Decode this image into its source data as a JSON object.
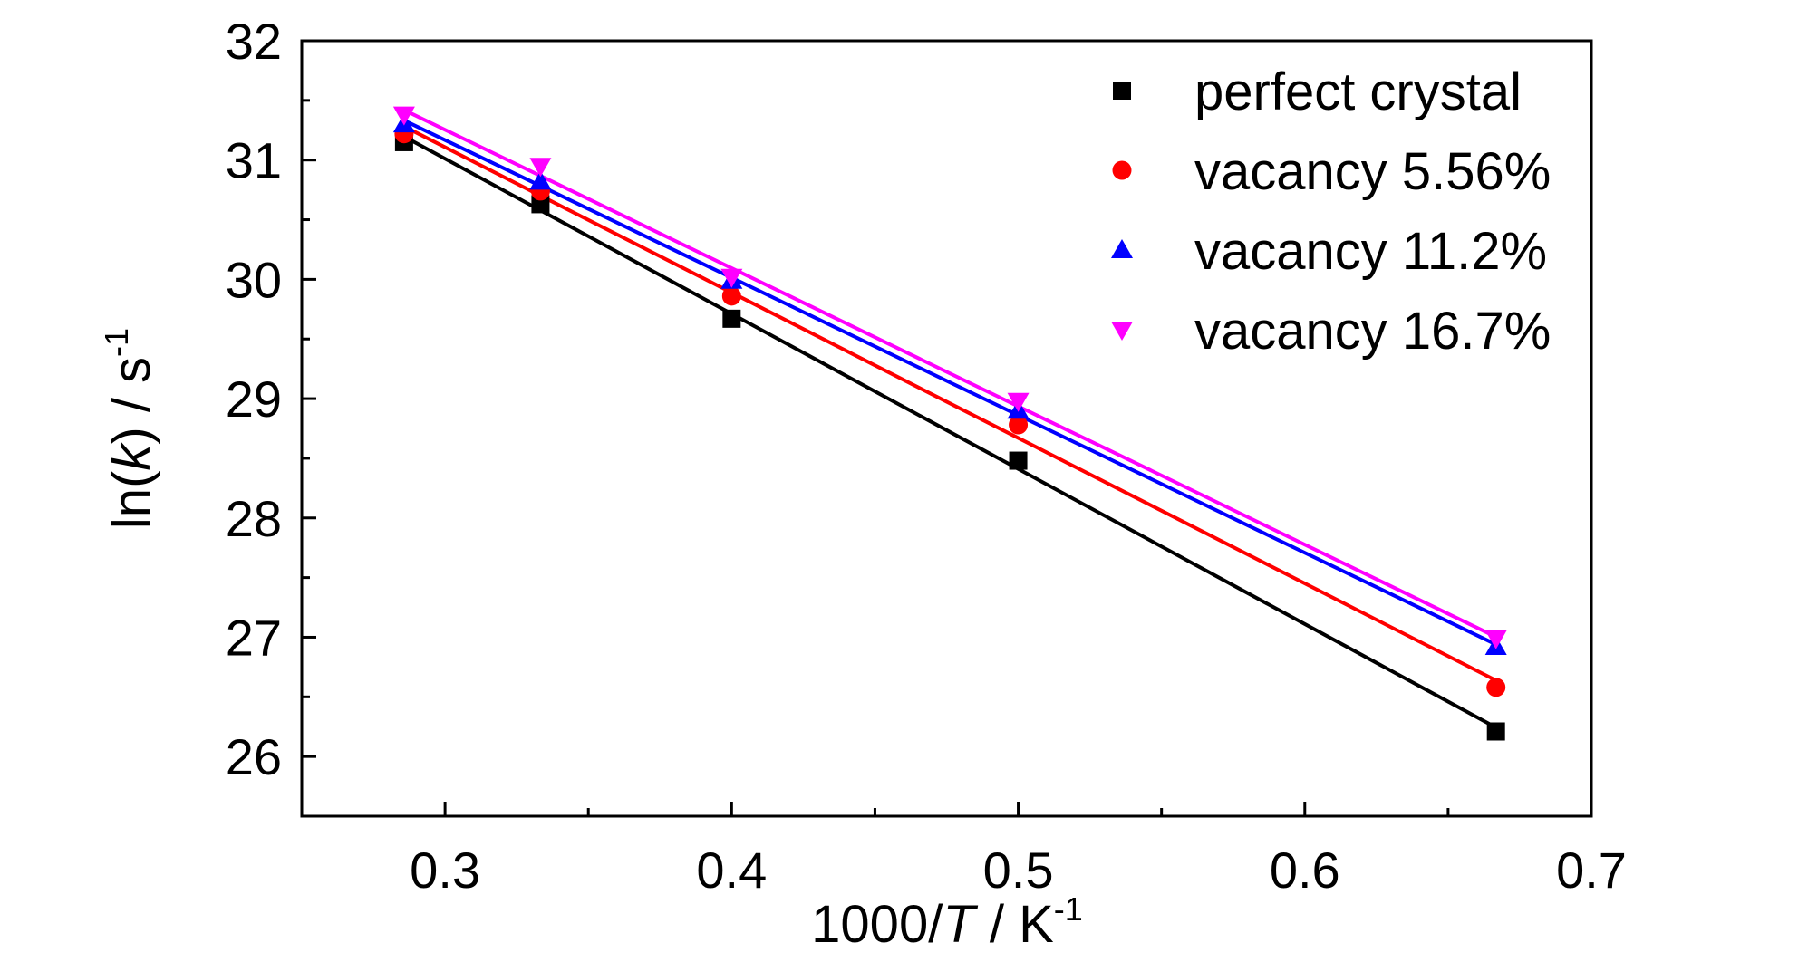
{
  "chart_data": {
    "type": "scatter",
    "xlabel": {
      "prefix": "1000/",
      "italic": "T",
      "suffix": " / K",
      "sup": "-1"
    },
    "ylabel": {
      "prefix": "ln(",
      "italic": "k",
      "suffix": ") / s",
      "sup": "-1"
    },
    "xlim": [
      0.25,
      0.7
    ],
    "ylim": [
      25.5,
      32
    ],
    "xticks": [
      0.3,
      0.4,
      0.5,
      0.6,
      0.7
    ],
    "xtick_labels": [
      "0.3",
      "0.4",
      "0.5",
      "0.6",
      "0.7"
    ],
    "yticks": [
      26,
      27,
      28,
      29,
      30,
      31,
      32
    ],
    "ytick_labels": [
      "26",
      "27",
      "28",
      "29",
      "30",
      "31",
      "32"
    ],
    "legend_position": "top-right",
    "grid": false,
    "fit_lines": true,
    "series": [
      {
        "name": "perfect crystal",
        "color": "#000000",
        "marker": "square",
        "x": [
          0.2857,
          0.3333,
          0.4,
          0.5,
          0.6667
        ],
        "y": [
          31.15,
          30.63,
          29.67,
          28.48,
          26.21
        ]
      },
      {
        "name": "vacancy 5.56%",
        "color": "#ff0000",
        "marker": "circle",
        "x": [
          0.2857,
          0.3333,
          0.4,
          0.5,
          0.6667
        ],
        "y": [
          31.22,
          30.74,
          29.86,
          28.78,
          26.58
        ]
      },
      {
        "name": "vacancy 11.2%",
        "color": "#0000ff",
        "marker": "triangle-up",
        "x": [
          0.2857,
          0.3333,
          0.4,
          0.5,
          0.6667
        ],
        "y": [
          31.3,
          30.82,
          29.99,
          28.9,
          26.92
        ]
      },
      {
        "name": "vacancy 16.7%",
        "color": "#ff00ff",
        "marker": "triangle-down",
        "x": [
          0.2857,
          0.3333,
          0.4,
          0.5,
          0.6667
        ],
        "y": [
          31.38,
          30.95,
          30.02,
          28.98,
          26.99
        ]
      }
    ]
  }
}
